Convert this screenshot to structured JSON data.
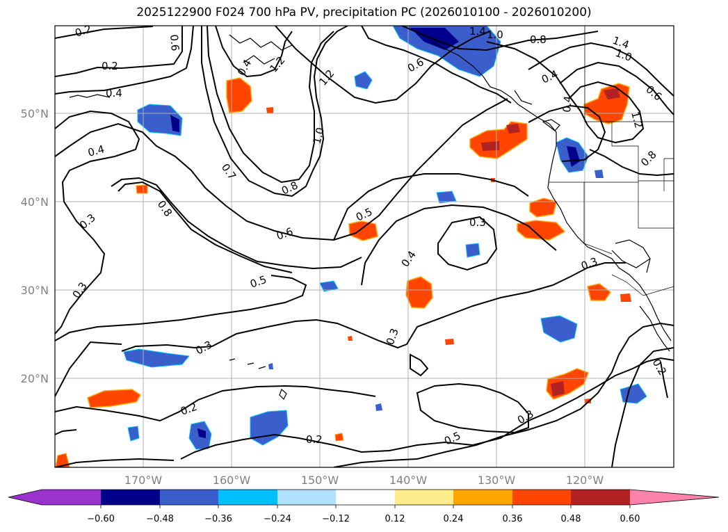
{
  "title": "2025122900 F024 700 hPa PV, precipitation PC (2026010100 - 2026010200)",
  "latitude_labels": [
    "50°N",
    "40°N",
    "30°N",
    "20°N"
  ],
  "longitude_labels": [
    "170°W",
    "160°W",
    "150°W",
    "140°W",
    "130°W",
    "120°W"
  ],
  "contour_labels": [
    "0.2",
    "0.2",
    "0.4",
    "0.4",
    "0.3",
    "0.3",
    "0.3",
    "0.3",
    "0.2",
    "0.2",
    "0.3",
    "0.3",
    "0.4",
    "0.5",
    "0.6",
    "0.8",
    "0.7",
    "1.0",
    "1.2",
    "1.2",
    "1.4",
    "0.8",
    "0.4",
    "0.6",
    "0.5",
    "0.5",
    "0.3",
    "0.2",
    "1.0",
    "0.8",
    "1.4",
    "1.0",
    "0.6",
    "1.2",
    "0.6",
    "0.4",
    "0.8",
    "0.4"
  ],
  "colorbar": {
    "tick_labels": [
      "−0.60",
      "−0.48",
      "−0.36",
      "−0.24",
      "−0.12",
      "0.12",
      "0.24",
      "0.36",
      "0.48",
      "0.60"
    ],
    "colors": [
      "#9a32cd",
      "#00008b",
      "#3a5fcd",
      "#00bfff",
      "#b0e2ff",
      "#ffffff",
      "#ffec8b",
      "#ffa500",
      "#ff4500",
      "#b22222",
      "#ff82ab"
    ]
  }
}
